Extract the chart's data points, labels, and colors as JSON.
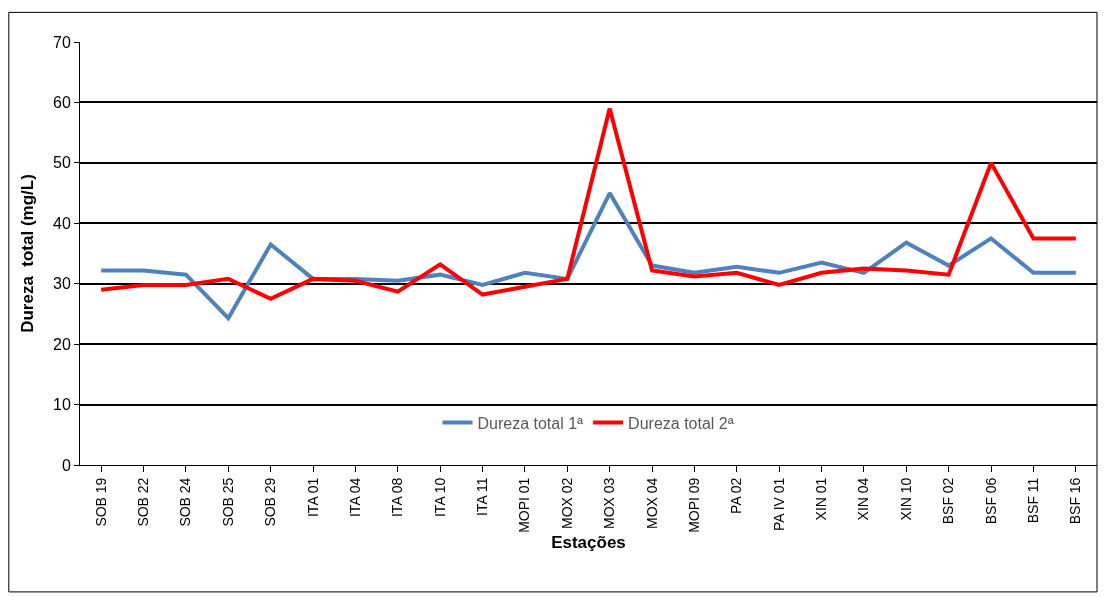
{
  "chart_data": {
    "type": "line",
    "xlabel": "Estações",
    "ylabel": "Dureza  total (mg/L)",
    "categories": [
      "SOB 19",
      "SOB 22",
      "SOB 24",
      "SOB 25",
      "SOB 29",
      "ITA 01",
      "ITA 04",
      "ITA 08",
      "ITA 10",
      "ITA 11",
      "MOPI 01",
      "MOX 02",
      "MOX 03",
      "MOX 04",
      "MOPI 09",
      "PA 02",
      "PA IV 01",
      "XIN 01",
      "XIN 04",
      "XIN 10",
      "BSF 02",
      "BSF 06",
      "BSF 11",
      "BSF 16"
    ],
    "series": [
      {
        "name": "Dureza total 1ª",
        "color": "#4f81bd",
        "values": [
          32.2,
          32.2,
          31.5,
          24.3,
          36.5,
          30.8,
          30.8,
          30.5,
          31.5,
          29.8,
          31.8,
          30.8,
          45,
          33,
          31.8,
          32.8,
          31.8,
          33.5,
          31.8,
          36.8,
          33,
          37.5,
          31.8,
          31.8
        ]
      },
      {
        "name": "Dureza total 2ª",
        "color": "#ff0000",
        "values": [
          29,
          29.8,
          29.8,
          30.8,
          27.5,
          30.8,
          30.5,
          28.7,
          33.2,
          28.2,
          29.5,
          30.8,
          59,
          32.2,
          31.2,
          31.8,
          29.8,
          31.8,
          32.5,
          32.2,
          31.5,
          50,
          37.5,
          37.5
        ]
      }
    ],
    "ylim": [
      0,
      70
    ],
    "yticks": [
      0,
      10,
      20,
      30,
      40,
      50,
      60,
      70
    ],
    "grid": "y",
    "legend": "bottom",
    "marker": "none",
    "line_style": "solid"
  }
}
